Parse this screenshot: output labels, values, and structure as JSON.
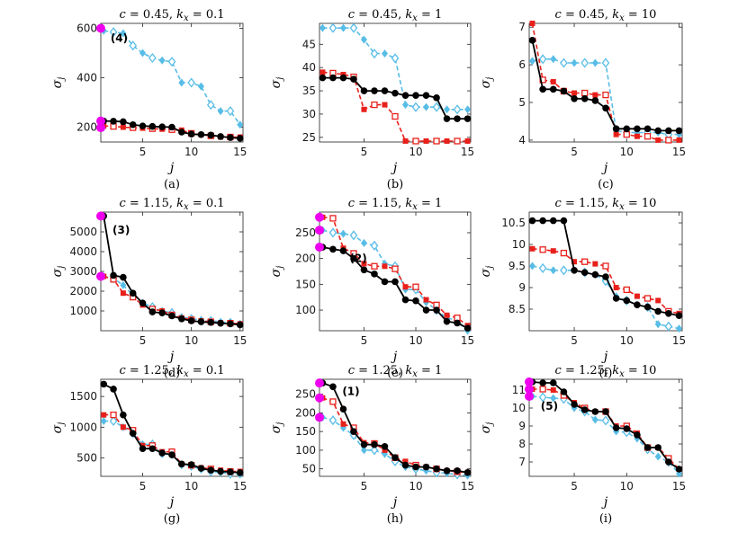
{
  "colors": {
    "black": "#000000",
    "red": "#e8201b",
    "blue": "#58bde6",
    "magenta": "#ee00ee"
  },
  "chart_data": [
    {
      "type": "line",
      "title_c": "c = 0.45",
      "title_k": "k",
      "title_sub": "x",
      "title_kval": " = 0.1",
      "xlabel": "j",
      "ylabel": "σ",
      "ylabel_sub": "j",
      "caption": "(a)",
      "xlim": [
        0.7,
        15.3
      ],
      "ylim": [
        140,
        620
      ],
      "xticks": [
        5,
        10,
        15
      ],
      "xtick_labels": [
        "5",
        "10",
        "15"
      ],
      "yticks": [
        200,
        400,
        600
      ],
      "ytick_labels": [
        "200",
        "400",
        "600"
      ],
      "annotation": "(4)",
      "annotation_at": [
        1.7,
        560
      ],
      "magenta_points": [
        600,
        225,
        198
      ],
      "series": [
        {
          "name": "black",
          "values": [
            225,
            224,
            222,
            210,
            205,
            203,
            201,
            200,
            180,
            172,
            170,
            168,
            162,
            158,
            155
          ]
        },
        {
          "name": "red",
          "values": [
            205,
            203,
            200,
            198,
            196,
            194,
            192,
            190,
            188,
            175,
            170,
            165,
            160,
            160,
            160
          ]
        },
        {
          "name": "blue",
          "values": [
            590,
            585,
            580,
            530,
            500,
            480,
            470,
            465,
            380,
            380,
            365,
            290,
            265,
            265,
            210
          ]
        }
      ]
    },
    {
      "type": "line",
      "title_c": "c = 0.45",
      "title_k": "k",
      "title_sub": "x",
      "title_kval": " = 1",
      "xlabel": "j",
      "ylabel": "σ",
      "ylabel_sub": "j",
      "caption": "(b)",
      "xlim": [
        0.7,
        15.3
      ],
      "ylim": [
        24,
        49.5
      ],
      "xticks": [
        5,
        10,
        15
      ],
      "xtick_labels": [
        "5",
        "10",
        "15"
      ],
      "yticks": [
        25,
        30,
        35,
        40,
        45
      ],
      "ytick_labels": [
        "25",
        "30",
        "35",
        "40",
        "45"
      ],
      "annotation": "",
      "annotation_at": [
        1,
        1
      ],
      "magenta_points": [],
      "series": [
        {
          "name": "black",
          "values": [
            37.8,
            37.8,
            37.8,
            37.5,
            35,
            35,
            35,
            34.5,
            34,
            34,
            34,
            33.5,
            29,
            29,
            29
          ]
        },
        {
          "name": "red",
          "values": [
            39,
            38.8,
            38.5,
            38,
            31,
            32,
            32,
            29.5,
            24.2,
            24.2,
            24.2,
            24.2,
            24.2,
            24.2,
            24.2
          ]
        },
        {
          "name": "blue",
          "values": [
            48.5,
            48.5,
            48.5,
            48.5,
            46,
            43,
            43,
            42,
            32,
            31.5,
            31.5,
            31.5,
            31,
            31,
            31
          ]
        }
      ]
    },
    {
      "type": "line",
      "title_c": "c = 0.45",
      "title_k": "k",
      "title_sub": "x",
      "title_kval": " = 10",
      "xlabel": "j",
      "ylabel": "σ",
      "ylabel_sub": "j",
      "caption": "(c)",
      "xlim": [
        0.7,
        15.3
      ],
      "ylim": [
        3.95,
        7.1
      ],
      "xticks": [
        5,
        10,
        15
      ],
      "xtick_labels": [
        "5",
        "10",
        "15"
      ],
      "yticks": [
        4,
        5,
        6,
        7
      ],
      "ytick_labels": [
        "4",
        "5",
        "6",
        "7"
      ],
      "annotation": "",
      "annotation_at": [
        1,
        1
      ],
      "magenta_points": [],
      "series": [
        {
          "name": "black",
          "values": [
            6.65,
            5.35,
            5.35,
            5.3,
            5.1,
            5.1,
            5.05,
            4.85,
            4.3,
            4.3,
            4.3,
            4.3,
            4.25,
            4.25,
            4.25
          ]
        },
        {
          "name": "red",
          "values": [
            7.1,
            5.6,
            5.55,
            5.3,
            5.25,
            5.25,
            5.2,
            5.2,
            4.15,
            4.15,
            4.1,
            4.1,
            4.0,
            4.0,
            4.0
          ]
        },
        {
          "name": "blue",
          "values": [
            6.1,
            6.15,
            6.15,
            6.05,
            6.05,
            6.05,
            6.05,
            6.05,
            4.25,
            4.2,
            4.2,
            4.2,
            4.2,
            4.15,
            4.15
          ]
        }
      ]
    },
    {
      "type": "line",
      "title_c": "c = 1.15",
      "title_k": "k",
      "title_sub": "x",
      "title_kval": " = 0.1",
      "xlabel": "j",
      "ylabel": "σ",
      "ylabel_sub": "j",
      "caption": "(d)",
      "xlim": [
        0.7,
        15.3
      ],
      "ylim": [
        0,
        6000
      ],
      "xticks": [
        5,
        10,
        15
      ],
      "xtick_labels": [
        "5",
        "10",
        "15"
      ],
      "yticks": [
        1000,
        2000,
        3000,
        4000,
        5000
      ],
      "ytick_labels": [
        "1000",
        "2000",
        "3000",
        "4000",
        "5000"
      ],
      "annotation": "(3)",
      "annotation_at": [
        1.9,
        5100
      ],
      "magenta_points": [
        5800,
        2750
      ],
      "series": [
        {
          "name": "black",
          "values": [
            5800,
            2800,
            2700,
            1900,
            1400,
            950,
            900,
            750,
            600,
            500,
            450,
            420,
            380,
            350,
            300
          ]
        },
        {
          "name": "red",
          "values": [
            2750,
            2600,
            1900,
            1700,
            1300,
            1100,
            1000,
            800,
            650,
            550,
            500,
            450,
            400,
            380,
            350
          ]
        },
        {
          "name": "blue",
          "values": [
            2750,
            2650,
            2300,
            1800,
            1400,
            1200,
            1000,
            900,
            700,
            600,
            550,
            500,
            450,
            400,
            350
          ]
        }
      ]
    },
    {
      "type": "line",
      "title_c": "c = 1.15",
      "title_k": "k",
      "title_sub": "x",
      "title_kval": " = 1",
      "xlabel": "j",
      "ylabel": "σ",
      "ylabel_sub": "j",
      "caption": "(e)",
      "xlim": [
        0.7,
        15.3
      ],
      "ylim": [
        60,
        290
      ],
      "xticks": [
        5,
        10,
        15
      ],
      "xtick_labels": [
        "5",
        "10",
        "15"
      ],
      "yticks": [
        100,
        150,
        200,
        250
      ],
      "ytick_labels": [
        "100",
        "150",
        "200",
        "250"
      ],
      "annotation": "(2)",
      "annotation_at": [
        3.6,
        200
      ],
      "magenta_points": [
        280,
        255,
        222
      ],
      "series": [
        {
          "name": "black",
          "values": [
            222,
            218,
            215,
            200,
            178,
            170,
            155,
            155,
            120,
            118,
            100,
            100,
            78,
            75,
            65
          ]
        },
        {
          "name": "red",
          "values": [
            280,
            278,
            220,
            210,
            190,
            185,
            185,
            180,
            145,
            145,
            120,
            110,
            90,
            85,
            70
          ]
        },
        {
          "name": "blue",
          "values": [
            255,
            250,
            248,
            245,
            230,
            225,
            190,
            185,
            140,
            140,
            115,
            100,
            85,
            80,
            60
          ]
        }
      ]
    },
    {
      "type": "line",
      "title_c": "c = 1.15",
      "title_k": "k",
      "title_sub": "x",
      "title_kval": " = 10",
      "xlabel": "j",
      "ylabel": "σ",
      "ylabel_sub": "j",
      "caption": "(f)",
      "xlim": [
        0.7,
        15.3
      ],
      "ylim": [
        8.0,
        10.75
      ],
      "xticks": [
        5,
        10,
        15
      ],
      "xtick_labels": [
        "5",
        "10",
        "15"
      ],
      "yticks": [
        8.5,
        9,
        9.5,
        10,
        10.5
      ],
      "ytick_labels": [
        "8.5",
        "9",
        "9.5",
        "10",
        "10.5"
      ],
      "annotation": "",
      "annotation_at": [
        1,
        1
      ],
      "magenta_points": [],
      "series": [
        {
          "name": "black",
          "values": [
            10.55,
            10.55,
            10.55,
            10.55,
            9.4,
            9.35,
            9.3,
            9.25,
            8.75,
            8.7,
            8.6,
            8.55,
            8.45,
            8.4,
            8.35
          ]
        },
        {
          "name": "red",
          "values": [
            9.9,
            9.88,
            9.85,
            9.8,
            9.6,
            9.6,
            9.55,
            9.5,
            9.0,
            8.95,
            8.8,
            8.75,
            8.7,
            8.45,
            8.4
          ]
        },
        {
          "name": "blue",
          "values": [
            9.5,
            9.45,
            9.4,
            9.4,
            9.4,
            9.35,
            9.3,
            9.15,
            8.8,
            8.7,
            8.6,
            8.55,
            8.15,
            8.1,
            8.05
          ]
        }
      ]
    },
    {
      "type": "line",
      "title_c": "c = 1.25",
      "title_k": "k",
      "title_sub": "x",
      "title_kval": " = 0.1",
      "xlabel": "j",
      "ylabel": "σ",
      "ylabel_sub": "j",
      "caption": "(g)",
      "xlim": [
        0.7,
        15.3
      ],
      "ylim": [
        200,
        1780
      ],
      "xticks": [
        5,
        10,
        15
      ],
      "xtick_labels": [
        "5",
        "10",
        "15"
      ],
      "yticks": [
        500,
        1000,
        1500
      ],
      "ytick_labels": [
        "500",
        "1000",
        "1500"
      ],
      "annotation": "",
      "annotation_at": [
        1,
        1
      ],
      "magenta_points": [],
      "series": [
        {
          "name": "black",
          "values": [
            1700,
            1620,
            1200,
            900,
            650,
            650,
            580,
            550,
            400,
            390,
            330,
            300,
            280,
            270,
            260
          ]
        },
        {
          "name": "red",
          "values": [
            1200,
            1200,
            1000,
            950,
            700,
            700,
            600,
            600,
            400,
            380,
            340,
            320,
            300,
            280,
            280
          ]
        },
        {
          "name": "blue",
          "values": [
            1100,
            1100,
            1000,
            900,
            720,
            720,
            560,
            560,
            380,
            370,
            310,
            280,
            260,
            240,
            230
          ]
        }
      ]
    },
    {
      "type": "line",
      "title_c": "c = 1.25",
      "title_k": "k",
      "title_sub": "x",
      "title_kval": " = 1",
      "xlabel": "j",
      "ylabel": "σ",
      "ylabel_sub": "j",
      "caption": "(h)",
      "xlim": [
        0.7,
        15.3
      ],
      "ylim": [
        30,
        290
      ],
      "xticks": [
        5,
        10,
        15
      ],
      "xtick_labels": [
        "5",
        "10",
        "15"
      ],
      "yticks": [
        50,
        100,
        150,
        200,
        250
      ],
      "ytick_labels": [
        "50",
        "100",
        "150",
        "200",
        "250"
      ],
      "annotation": "(1)",
      "annotation_at": [
        2.9,
        258
      ],
      "magenta_points": [
        280,
        240,
        188
      ],
      "series": [
        {
          "name": "black",
          "values": [
            280,
            270,
            210,
            150,
            115,
            115,
            110,
            80,
            60,
            55,
            55,
            50,
            45,
            45,
            40
          ]
        },
        {
          "name": "red",
          "values": [
            240,
            230,
            170,
            160,
            120,
            118,
            100,
            80,
            70,
            60,
            55,
            50,
            45,
            42,
            40
          ]
        },
        {
          "name": "blue",
          "values": [
            188,
            180,
            160,
            140,
            100,
            100,
            90,
            70,
            55,
            50,
            45,
            40,
            38,
            35,
            32
          ]
        }
      ]
    },
    {
      "type": "line",
      "title_c": "c = 1.25",
      "title_k": "k",
      "title_sub": "x",
      "title_kval": " = 10",
      "xlabel": "j",
      "ylabel": "σ",
      "ylabel_sub": "j",
      "caption": "(i)",
      "xlim": [
        0.7,
        15.3
      ],
      "ylim": [
        6.2,
        11.6
      ],
      "xticks": [
        5,
        10,
        15
      ],
      "xtick_labels": [
        "5",
        "10",
        "15"
      ],
      "yticks": [
        7,
        8,
        9,
        10,
        11
      ],
      "ytick_labels": [
        "7",
        "8",
        "9",
        "10",
        "11"
      ],
      "annotation": "(5)",
      "annotation_at": [
        1.8,
        10.1
      ],
      "magenta_points": [
        11.45,
        11.05,
        10.65
      ],
      "series": [
        {
          "name": "black",
          "values": [
            11.45,
            11.4,
            11.4,
            10.9,
            10.2,
            9.9,
            9.8,
            9.8,
            8.9,
            8.85,
            8.5,
            7.8,
            7.8,
            7.0,
            6.6
          ]
        },
        {
          "name": "red",
          "values": [
            11.05,
            11.05,
            11.0,
            10.7,
            10.3,
            10.0,
            9.8,
            9.8,
            9.0,
            9.0,
            8.6,
            7.8,
            7.8,
            7.2,
            6.6
          ]
        },
        {
          "name": "blue",
          "values": [
            10.65,
            10.6,
            10.55,
            10.5,
            10.0,
            9.8,
            9.35,
            9.3,
            8.7,
            8.65,
            8.3,
            7.7,
            7.3,
            7.0,
            6.35
          ]
        }
      ]
    }
  ]
}
